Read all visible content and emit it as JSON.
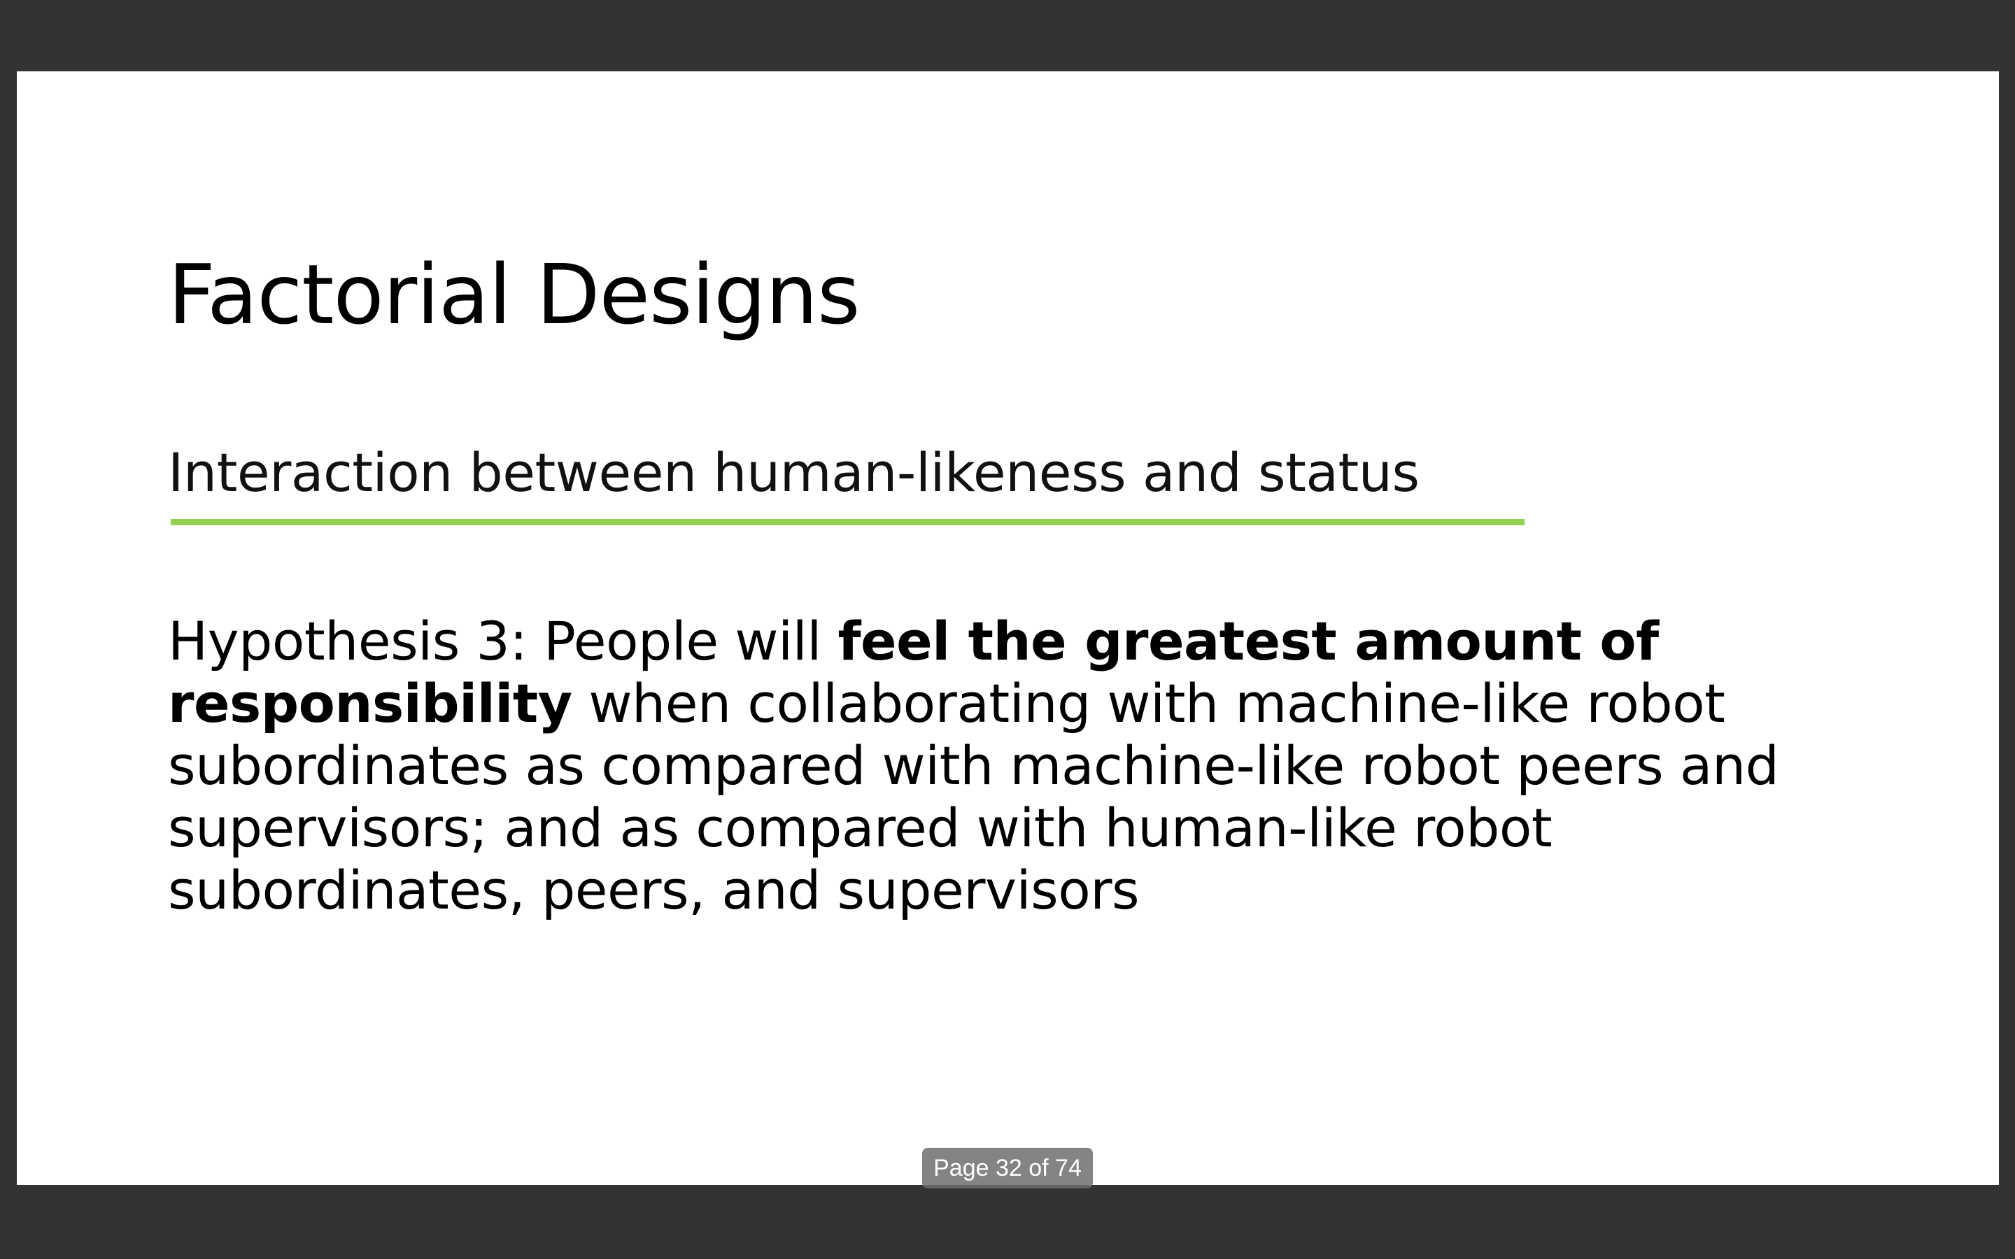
{
  "slide": {
    "title": "Factorial Designs",
    "subtitle": "Interaction between human-likeness and status",
    "body": {
      "prefix": "Hypothesis 3: People will ",
      "emphasis": "feel the greatest amount of responsibility",
      "suffix": " when collaborating with machine-like robot subordinates as compared with machine-like robot peers and supervisors; and as compared with human-like robot subordinates, peers, and supervisors"
    }
  },
  "viewer": {
    "page_indicator": "Page 32 of 74"
  },
  "colors": {
    "accent_rule": "#92d050",
    "viewer_background": "#333333",
    "slide_background": "#ffffff"
  }
}
